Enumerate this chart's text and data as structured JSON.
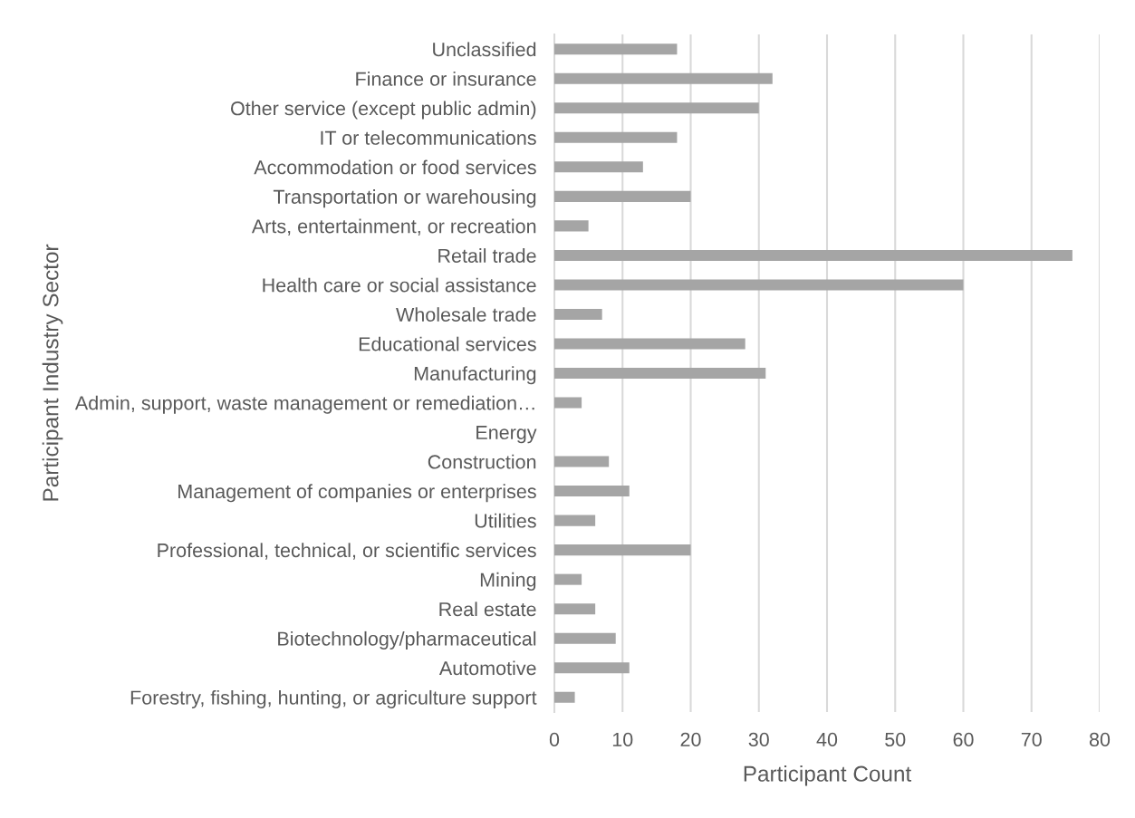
{
  "chart_data": {
    "type": "bar",
    "orientation": "horizontal",
    "xlabel": "Participant Count",
    "ylabel": "Participant Industry Sector",
    "categories": [
      "Unclassified",
      "Finance or insurance",
      "Other service (except public admin)",
      "IT or telecommunications",
      "Accommodation or food services",
      "Transportation or warehousing",
      "Arts, entertainment, or recreation",
      "Retail trade",
      "Health care or social assistance",
      "Wholesale trade",
      "Educational services",
      "Manufacturing",
      "Admin, support, waste management or remediation…",
      "Energy",
      "Construction",
      "Management of companies or enterprises",
      "Utilities",
      "Professional, technical, or scientific services",
      "Mining",
      "Real estate",
      "Biotechnology/pharmaceutical",
      "Automotive",
      "Forestry, fishing, hunting, or agriculture support"
    ],
    "values": [
      18,
      32,
      30,
      18,
      13,
      20,
      5,
      76,
      60,
      7,
      28,
      31,
      4,
      0,
      8,
      11,
      6,
      20,
      4,
      6,
      9,
      11,
      3
    ],
    "color": "#a5a5a5",
    "xlim": [
      0,
      80
    ],
    "xticks": [
      0,
      10,
      20,
      30,
      40,
      50,
      60,
      70,
      80
    ],
    "grid": "x",
    "legend": false
  }
}
